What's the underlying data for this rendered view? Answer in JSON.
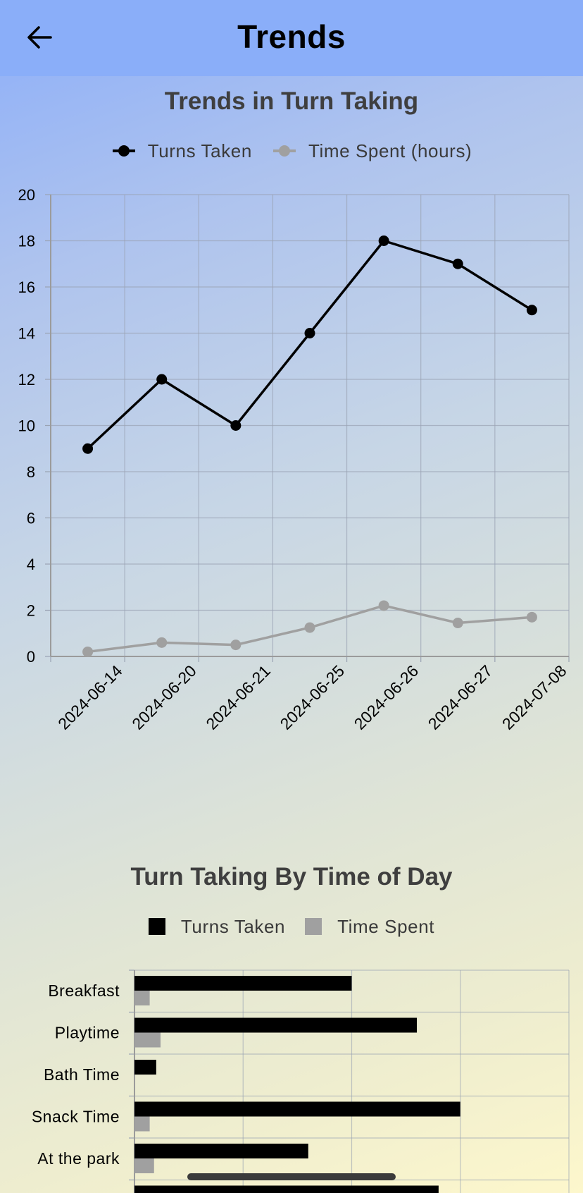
{
  "header": {
    "title": "Trends",
    "back_icon": "arrow-left-icon"
  },
  "colors": {
    "header_bg": "#8aaef9",
    "turns_taken": "#000000",
    "time_spent": "#a0a0a0",
    "grid": "#9aa3b3"
  },
  "line_chart": {
    "title": "Trends in Turn Taking",
    "legend": {
      "turns_taken": "Turns Taken",
      "time_spent": "Time Spent (hours)"
    },
    "chart_data": {
      "type": "line",
      "title": "Trends in Turn Taking",
      "x": [
        "2024-06-14",
        "2024-06-20",
        "2024-06-21",
        "2024-06-25",
        "2024-06-26",
        "2024-06-27",
        "2024-07-08"
      ],
      "series": [
        {
          "name": "Turns Taken",
          "values": [
            9,
            12,
            10,
            14,
            18,
            17,
            15
          ]
        },
        {
          "name": "Time Spent (hours)",
          "values": [
            0.2,
            0.6,
            0.5,
            1.25,
            2.2,
            1.45,
            1.7
          ]
        }
      ],
      "ylim": [
        0,
        20
      ],
      "y_ticks": [
        "0",
        "2",
        "4",
        "6",
        "8",
        "10",
        "12",
        "14",
        "16",
        "18",
        "20"
      ],
      "grid": true,
      "legend_position": "top"
    }
  },
  "bar_chart": {
    "title": "Turn Taking By Time of Day",
    "legend": {
      "turns_taken": "Turns Taken",
      "time_spent": "Time Spent"
    },
    "chart_data": {
      "type": "bar",
      "orientation": "horizontal",
      "title": "Turn Taking By Time of Day",
      "categories": [
        "Breakfast",
        "Playtime",
        "Bath Time",
        "Snack Time",
        "At the park"
      ],
      "series": [
        {
          "name": "Turns Taken",
          "values": [
            10,
            13,
            1,
            15,
            8
          ]
        },
        {
          "name": "Time Spent",
          "values": [
            0.7,
            1.2,
            0,
            0.7,
            0.9
          ]
        }
      ],
      "xlim": [
        0,
        20
      ],
      "grid": true,
      "legend_position": "top"
    }
  }
}
